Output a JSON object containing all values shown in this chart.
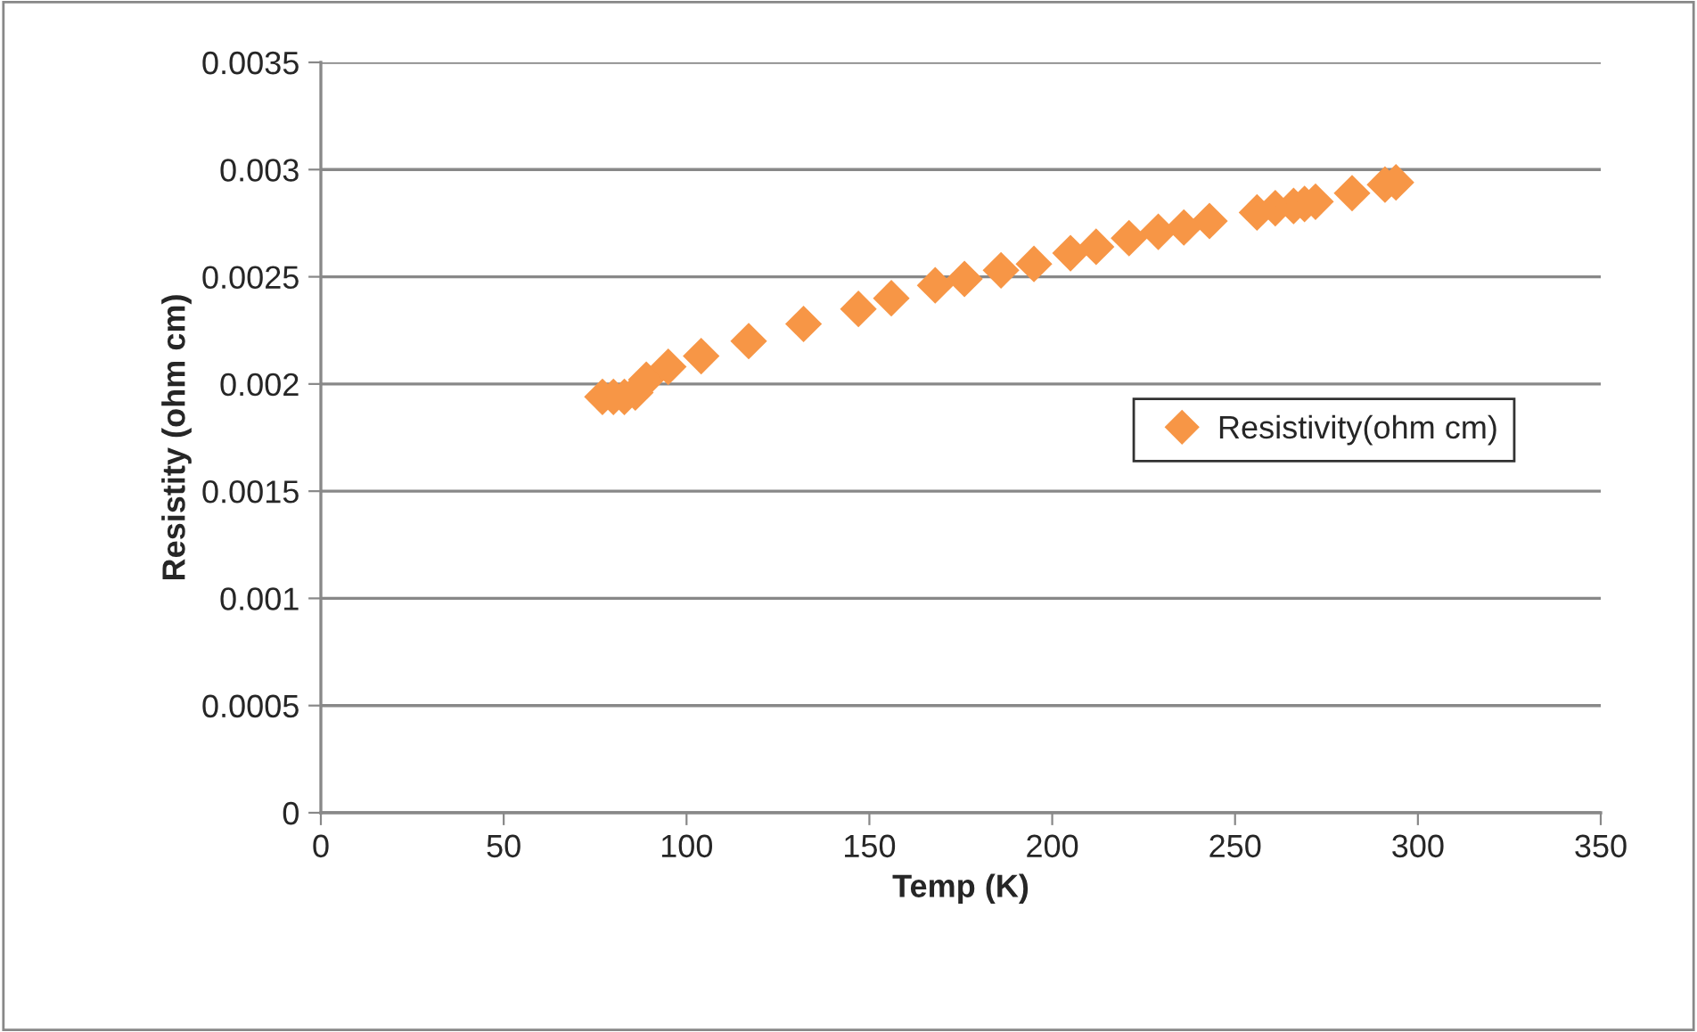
{
  "chart_data": {
    "type": "scatter",
    "xlabel": "Temp (K)",
    "ylabel": "Resistity (ohm cm)",
    "x": [
      77,
      80,
      83,
      86,
      89,
      95,
      104,
      117,
      132,
      147,
      156,
      168,
      176,
      186,
      195,
      205,
      212,
      221,
      229,
      236,
      243,
      256,
      261,
      266,
      269,
      272,
      282,
      291,
      294
    ],
    "series": [
      {
        "name": "Resistivity(ohm cm)",
        "color": "#f79646",
        "values": [
          0.00194,
          0.00194,
          0.00194,
          0.00196,
          0.00202,
          0.00208,
          0.00213,
          0.0022,
          0.00228,
          0.00235,
          0.0024,
          0.00246,
          0.00249,
          0.00253,
          0.00256,
          0.00261,
          0.00264,
          0.00268,
          0.00271,
          0.00273,
          0.00276,
          0.0028,
          0.00282,
          0.00283,
          0.00284,
          0.00285,
          0.00289,
          0.00293,
          0.00294
        ]
      }
    ],
    "xlim": [
      0,
      350
    ],
    "xticks": [
      0,
      50,
      100,
      150,
      200,
      250,
      300,
      350
    ],
    "ylim": [
      0,
      0.0035
    ],
    "yticks": [
      0,
      0.0005,
      0.001,
      0.0015,
      0.002,
      0.0025,
      0.003,
      0.0035
    ],
    "grid": "y",
    "legend": "right",
    "marker": "diamond"
  }
}
